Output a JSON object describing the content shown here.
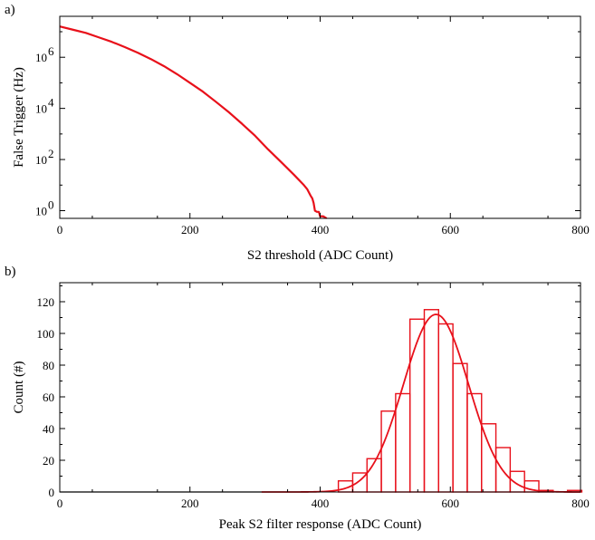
{
  "colors": {
    "series": "#e8101a",
    "axis": "#000000"
  },
  "chart_data": [
    {
      "panel_label": "a)",
      "type": "line",
      "xlabel": "S2 threshold (ADC Count)",
      "ylabel": "False Trigger (Hz)",
      "xlim": [
        0,
        800
      ],
      "ylim": [
        0.5,
        40000000
      ],
      "y_scale": "log",
      "grid": false,
      "x_ticks": [
        0,
        200,
        400,
        600,
        800
      ],
      "x_tick_labels": [
        "0",
        "200",
        "400",
        "600",
        "800"
      ],
      "y_ticks": [
        1,
        100,
        10000,
        1000000
      ],
      "y_tick_labels": [
        {
          "base": "10",
          "exp": "0"
        },
        {
          "base": "10",
          "exp": "2"
        },
        {
          "base": "10",
          "exp": "4"
        },
        {
          "base": "10",
          "exp": "6"
        }
      ],
      "series": [
        {
          "x": [
            0,
            20,
            40,
            60,
            80,
            100,
            120,
            140,
            160,
            180,
            200,
            220,
            240,
            260,
            280,
            300,
            320,
            340,
            360,
            375,
            380,
            385,
            388,
            390,
            392,
            395,
            398,
            400,
            405,
            410
          ],
          "y": [
            16000000,
            12000000,
            9000000,
            6000000,
            4000000,
            2500000,
            1500000,
            850000,
            450000,
            220000,
            100000,
            45000,
            18000,
            7000,
            2500,
            850,
            250,
            80,
            25,
            10,
            7,
            4,
            3,
            2,
            1,
            0.9,
            0.9,
            0.6,
            0.6,
            0.5
          ]
        }
      ]
    },
    {
      "panel_label": "b)",
      "type": "bar",
      "xlabel": "Peak S2 filter response (ADC Count)",
      "ylabel": "Count (#)",
      "xlim": [
        0,
        800
      ],
      "ylim": [
        0,
        132
      ],
      "grid": false,
      "x_ticks": [
        0,
        200,
        400,
        600,
        800
      ],
      "x_tick_labels": [
        "0",
        "200",
        "400",
        "600",
        "800"
      ],
      "y_ticks": [
        0,
        20,
        40,
        60,
        80,
        100,
        120
      ],
      "y_tick_labels": [
        "0",
        "20",
        "40",
        "60",
        "80",
        "100",
        "120"
      ],
      "histogram": {
        "bin_width": 22,
        "bins": [
          {
            "x": 439,
            "count": 7
          },
          {
            "x": 461,
            "count": 12
          },
          {
            "x": 483,
            "count": 21
          },
          {
            "x": 505,
            "count": 51
          },
          {
            "x": 527,
            "count": 62
          },
          {
            "x": 549,
            "count": 109
          },
          {
            "x": 571,
            "count": 115
          },
          {
            "x": 593,
            "count": 106
          },
          {
            "x": 615,
            "count": 81
          },
          {
            "x": 637,
            "count": 62
          },
          {
            "x": 659,
            "count": 43
          },
          {
            "x": 681,
            "count": 28
          },
          {
            "x": 703,
            "count": 13
          },
          {
            "x": 725,
            "count": 7
          },
          {
            "x": 747,
            "count": 1
          },
          {
            "x": 769,
            "count": 0
          },
          {
            "x": 791,
            "count": 1
          }
        ]
      },
      "fit": {
        "type": "gaussian",
        "amplitude": 112,
        "mean": 578,
        "sigma": 50,
        "x_start": 310,
        "x_end": 800
      }
    }
  ]
}
